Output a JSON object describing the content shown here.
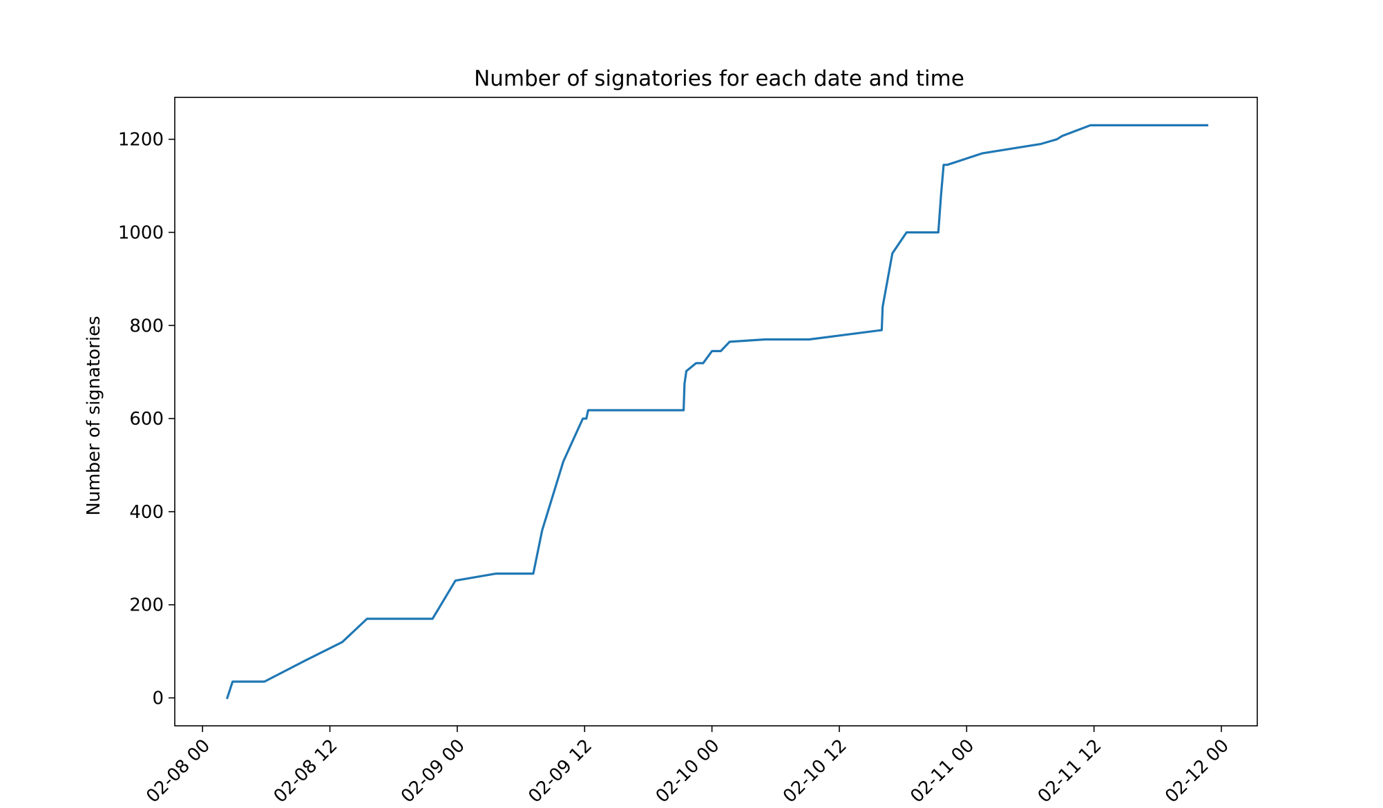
{
  "chart_data": {
    "type": "line",
    "title": "Number of signatories for each date and time",
    "xlabel": "",
    "ylabel": "Number of signatories",
    "xlim": [
      "02-07 21:23",
      "02-12 03:23"
    ],
    "ylim": [
      -60,
      1290
    ],
    "xticks": [
      {
        "value": "02-08 00:00",
        "label": "02-08 00"
      },
      {
        "value": "02-08 12:00",
        "label": "02-08 12"
      },
      {
        "value": "02-09 00:00",
        "label": "02-09 00"
      },
      {
        "value": "02-09 12:00",
        "label": "02-09 12"
      },
      {
        "value": "02-10 00:00",
        "label": "02-10 00"
      },
      {
        "value": "02-10 12:00",
        "label": "02-10 12"
      },
      {
        "value": "02-11 00:00",
        "label": "02-11 00"
      },
      {
        "value": "02-11 12:00",
        "label": "02-11 12"
      },
      {
        "value": "02-12 00:00",
        "label": "02-12 00"
      }
    ],
    "yticks": [
      {
        "value": 0,
        "label": "0"
      },
      {
        "value": 200,
        "label": "200"
      },
      {
        "value": 400,
        "label": "400"
      },
      {
        "value": 600,
        "label": "600"
      },
      {
        "value": 800,
        "label": "800"
      },
      {
        "value": 1000,
        "label": "1000"
      },
      {
        "value": 1200,
        "label": "1200"
      }
    ],
    "grid": false,
    "series": [
      {
        "color": "#1f77b4",
        "points": [
          {
            "x": "02-08 02:20",
            "y": 0
          },
          {
            "x": "02-08 02:50",
            "y": 35
          },
          {
            "x": "02-08 05:50",
            "y": 35
          },
          {
            "x": "02-08 09:40",
            "y": 80
          },
          {
            "x": "02-08 13:10",
            "y": 120
          },
          {
            "x": "02-08 15:30",
            "y": 170
          },
          {
            "x": "02-08 21:40",
            "y": 170
          },
          {
            "x": "02-08 22:20",
            "y": 195
          },
          {
            "x": "02-08 23:50",
            "y": 252
          },
          {
            "x": "02-09 03:40",
            "y": 267
          },
          {
            "x": "02-09 07:10",
            "y": 267
          },
          {
            "x": "02-09 08:00",
            "y": 360
          },
          {
            "x": "02-09 10:00",
            "y": 508
          },
          {
            "x": "02-09 11:50",
            "y": 600
          },
          {
            "x": "02-09 12:10",
            "y": 600
          },
          {
            "x": "02-09 12:20",
            "y": 618
          },
          {
            "x": "02-09 21:20",
            "y": 618
          },
          {
            "x": "02-09 21:25",
            "y": 675
          },
          {
            "x": "02-09 21:35",
            "y": 702
          },
          {
            "x": "02-09 22:30",
            "y": 719
          },
          {
            "x": "02-09 23:10",
            "y": 719
          },
          {
            "x": "02-10 00:00",
            "y": 745
          },
          {
            "x": "02-10 00:50",
            "y": 745
          },
          {
            "x": "02-10 01:40",
            "y": 765
          },
          {
            "x": "02-10 05:00",
            "y": 770
          },
          {
            "x": "02-10 09:10",
            "y": 770
          },
          {
            "x": "02-10 16:00",
            "y": 790
          },
          {
            "x": "02-10 16:05",
            "y": 840
          },
          {
            "x": "02-10 17:00",
            "y": 955
          },
          {
            "x": "02-10 18:20",
            "y": 1000
          },
          {
            "x": "02-10 21:20",
            "y": 1000
          },
          {
            "x": "02-10 21:35",
            "y": 1080
          },
          {
            "x": "02-10 21:50",
            "y": 1145
          },
          {
            "x": "02-10 22:10",
            "y": 1145
          },
          {
            "x": "02-11 01:30",
            "y": 1170
          },
          {
            "x": "02-11 07:00",
            "y": 1190
          },
          {
            "x": "02-11 08:30",
            "y": 1200
          },
          {
            "x": "02-11 09:00",
            "y": 1207
          },
          {
            "x": "02-11 11:40",
            "y": 1230
          },
          {
            "x": "02-11 22:40",
            "y": 1230
          }
        ]
      }
    ]
  }
}
